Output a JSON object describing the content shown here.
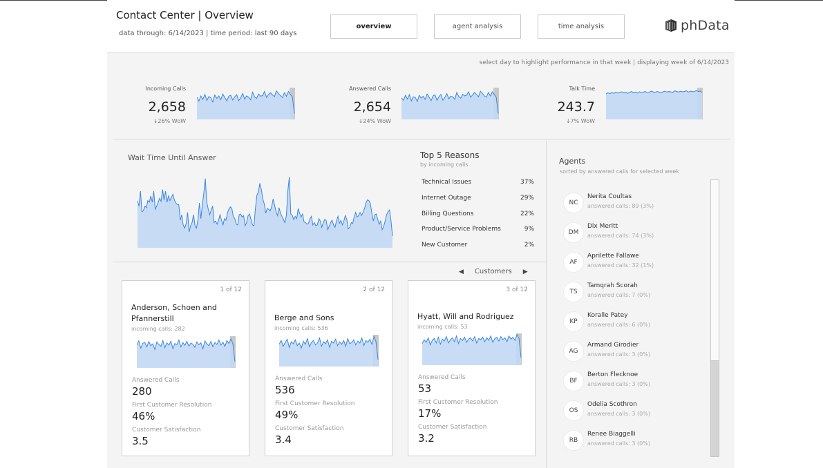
{
  "header": {
    "title": "Contact Center | Overview",
    "subtitle": "data through: 6/14/2023 | time period: last 90 days",
    "nav": [
      {
        "label": "overview",
        "active": true
      },
      {
        "label": "agent analysis",
        "active": false
      },
      {
        "label": "time analysis",
        "active": false
      }
    ],
    "logo": {
      "text": "phData",
      "icon": "phdata-logo-icon"
    }
  },
  "hint": "select day to highlight performance in that week | displaying week of 6/14/2023",
  "kpis": [
    {
      "label": "Incoming Calls",
      "value": "2,658",
      "delta": "↓26% WoW"
    },
    {
      "label": "Answered Calls",
      "value": "2,654",
      "delta": "↓24% WoW"
    },
    {
      "label": "Talk Time",
      "value": "243.7",
      "delta": "↓7% WoW"
    }
  ],
  "wait": {
    "title": "Wait Time Until Answer"
  },
  "reasons": {
    "title": "Top 5 Reasons",
    "subtitle": "by incoming calls",
    "items": [
      {
        "name": "Technical Issues",
        "pct": "37%"
      },
      {
        "name": "Internet Outage",
        "pct": "29%"
      },
      {
        "name": "Billing Questions",
        "pct": "22%"
      },
      {
        "name": "Product/Service Problems",
        "pct": "9%"
      },
      {
        "name": "New Customer",
        "pct": "2%"
      }
    ]
  },
  "customers": {
    "label": "Customers",
    "prev_icon": "triangle-left-icon",
    "next_icon": "triangle-right-icon",
    "metric_labels": {
      "answered": "Answered Calls",
      "fcr": "First Customer Resolution",
      "csat": "Customer Satisfaction"
    },
    "cards": [
      {
        "index": "1 of 12",
        "name": "Anderson, Schoen and Pfannerstill",
        "incoming": "incoming calls: 282",
        "answered": "280",
        "fcr": "46%",
        "csat": "3.5"
      },
      {
        "index": "2 of 12",
        "name": "Berge and Sons",
        "incoming": "incoming calls: 536",
        "answered": "536",
        "fcr": "49%",
        "csat": "3.4"
      },
      {
        "index": "3 of 12",
        "name": "Hyatt, Will and Rodriguez",
        "incoming": "incoming calls: 53",
        "answered": "53",
        "fcr": "17%",
        "csat": "3.2"
      }
    ]
  },
  "agents": {
    "title": "Agents",
    "subtitle": "sorted by answered calls for selected week",
    "items": [
      {
        "initials": "NC",
        "name": "Nerita Coultas",
        "calls": "answered calls: 89 (3%)"
      },
      {
        "initials": "DM",
        "name": "Dix Meritt",
        "calls": "answered calls: 74 (3%)"
      },
      {
        "initials": "AF",
        "name": "Aprilette Fallawe",
        "calls": "answered calls: 32 (1%)"
      },
      {
        "initials": "TS",
        "name": "Tamqrah Scorah",
        "calls": "answered calls: 7 (0%)"
      },
      {
        "initials": "KP",
        "name": "Koralle Patey",
        "calls": "answered calls: 6 (0%)"
      },
      {
        "initials": "AG",
        "name": "Armand Girodier",
        "calls": "answered calls: 3 (0%)"
      },
      {
        "initials": "BF",
        "name": "Berton Flecknoe",
        "calls": "answered calls: 3 (0%)"
      },
      {
        "initials": "OS",
        "name": "Odelia Scothron",
        "calls": "answered calls: 3 (0%)"
      },
      {
        "initials": "RB",
        "name": "Renee Biaggelli",
        "calls": "answered calls: 3 (0%)"
      }
    ]
  },
  "colors": {
    "accent": "#3a86e0",
    "fill": "#c2d9f4",
    "highlight": "#c8c8c8"
  },
  "chart_data": [
    {
      "type": "area",
      "name": "Wait Time Until Answer",
      "title": "Wait Time Until Answer",
      "values": [
        60,
        53,
        72,
        46,
        47,
        53,
        51,
        60,
        58,
        66,
        58,
        72,
        49,
        53,
        58,
        63,
        59,
        74,
        61,
        72,
        58,
        66,
        60,
        64,
        68,
        61,
        57,
        55,
        55,
        35,
        42,
        29,
        25,
        31,
        45,
        20,
        28,
        32,
        42,
        28,
        25,
        36,
        57,
        37,
        54,
        70,
        88,
        58,
        49,
        42,
        48,
        53,
        32,
        34,
        30,
        35,
        42,
        35,
        29,
        37,
        35,
        44,
        49,
        52,
        50,
        40,
        37,
        30,
        29,
        42,
        43,
        39,
        41,
        28,
        32,
        41,
        43,
        36,
        29,
        28,
        50,
        67,
        71,
        82,
        74,
        62,
        56,
        44,
        50,
        49,
        47,
        52,
        62,
        54,
        46,
        41,
        51,
        44,
        40,
        36,
        32,
        41,
        73,
        90,
        43,
        41,
        36,
        40,
        37,
        50,
        44,
        39,
        43,
        33,
        32,
        30,
        31,
        37,
        40,
        29,
        32,
        28,
        29,
        37,
        34,
        26,
        32,
        36,
        35,
        23,
        27,
        32,
        35,
        29,
        26,
        34,
        40,
        31,
        35,
        29,
        34,
        41,
        36,
        24,
        26,
        32,
        31,
        39,
        45,
        39,
        41,
        45,
        41,
        45,
        50,
        57,
        61,
        60,
        56,
        44,
        34,
        42,
        43,
        36,
        30,
        34,
        23,
        27,
        34,
        42,
        46,
        48,
        34,
        15
      ],
      "ylim": [
        0,
        100
      ]
    },
    {
      "type": "area",
      "name": "Incoming Calls",
      "values": [
        70,
        58,
        74,
        63,
        79,
        60,
        72,
        68,
        55,
        77,
        66,
        74,
        62,
        80,
        69,
        58,
        73,
        76,
        61,
        71,
        78,
        59,
        68,
        82,
        64,
        74,
        70,
        62,
        86,
        71,
        66,
        80,
        73,
        75,
        88,
        69,
        78,
        84,
        77,
        72,
        90,
        81,
        75,
        69,
        84,
        73,
        88,
        79,
        71,
        18
      ],
      "highlight_start": 0.95,
      "ylim": [
        0,
        100
      ]
    },
    {
      "type": "area",
      "name": "Answered Calls",
      "values": [
        68,
        60,
        76,
        64,
        78,
        58,
        71,
        69,
        57,
        76,
        67,
        73,
        63,
        80,
        70,
        59,
        74,
        77,
        60,
        72,
        79,
        60,
        70,
        81,
        65,
        73,
        71,
        63,
        85,
        72,
        67,
        79,
        74,
        76,
        87,
        70,
        77,
        85,
        78,
        71,
        89,
        82,
        74,
        70,
        85,
        74,
        87,
        78,
        70,
        19
      ],
      "highlight_start": 0.95,
      "ylim": [
        0,
        100
      ]
    },
    {
      "type": "area",
      "name": "Talk Time",
      "values": [
        80,
        84,
        81,
        85,
        82,
        86,
        83,
        85,
        87,
        84,
        86,
        82,
        85,
        88,
        84,
        86,
        83,
        87,
        85,
        86,
        88,
        84,
        85,
        89,
        87,
        85,
        88,
        86,
        84,
        87,
        89,
        86,
        88,
        87,
        85,
        90,
        88,
        86,
        89,
        87,
        88,
        90,
        86,
        89,
        88,
        87,
        91,
        88,
        89,
        85
      ],
      "highlight_start": 0.95,
      "ylim": [
        0,
        100
      ]
    },
    {
      "type": "area",
      "name": "Anderson, Schoen and Pfannerstill",
      "values": [
        72,
        85,
        62,
        78,
        80,
        66,
        83,
        70,
        76,
        58,
        82,
        74,
        68,
        86,
        64,
        79,
        72,
        84,
        61,
        77,
        73,
        88,
        66,
        80,
        71,
        84,
        69,
        78,
        75,
        65,
        82,
        73,
        79,
        60,
        85,
        76,
        70,
        83,
        67,
        80,
        74,
        88,
        72,
        81,
        68,
        86,
        77,
        91,
        75,
        20
      ],
      "highlight_start": 0.95,
      "ylim": [
        0,
        100
      ]
    },
    {
      "type": "area",
      "name": "Berge and Sons",
      "values": [
        70,
        82,
        64,
        76,
        86,
        60,
        78,
        72,
        84,
        66,
        74,
        58,
        80,
        70,
        88,
        62,
        76,
        82,
        68,
        74,
        90,
        64,
        78,
        72,
        84,
        60,
        80,
        74,
        86,
        66,
        78,
        70,
        82,
        64,
        88,
        72,
        76,
        84,
        68,
        80,
        74,
        90,
        66,
        82,
        76,
        86,
        70,
        95,
        78,
        22
      ],
      "highlight_start": 0.95,
      "ylim": [
        0,
        100
      ]
    },
    {
      "type": "area",
      "name": "Hyatt, Will and Rodriguez",
      "values": [
        68,
        80,
        72,
        86,
        64,
        78,
        84,
        70,
        88,
        66,
        82,
        76,
        90,
        70,
        80,
        86,
        74,
        92,
        68,
        84,
        78,
        88,
        72,
        82,
        86,
        76,
        90,
        70,
        84,
        80,
        88,
        74,
        86,
        78,
        92,
        72,
        84,
        88,
        76,
        90,
        80,
        86,
        74,
        92,
        82,
        88,
        78,
        96,
        84,
        24
      ],
      "highlight_start": 0.95,
      "ylim": [
        0,
        100
      ]
    }
  ]
}
